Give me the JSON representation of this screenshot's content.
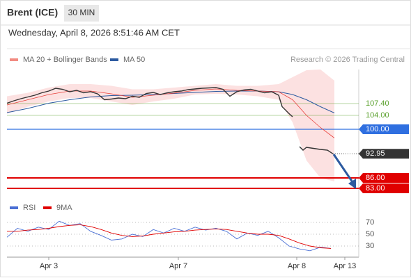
{
  "chart_data": {
    "type": "line",
    "title": "Brent (ICE)",
    "timeframe": "30 MIN",
    "subtitle": "Wednesday, April 8, 2026 8:51:46 AM CET",
    "credit": "Research © 2026 Trading Central",
    "xlim": [
      0,
      505
    ],
    "xticks": [
      {
        "value": 60,
        "label": "Apr 3"
      },
      {
        "value": 246,
        "label": "Apr 7"
      },
      {
        "value": 416,
        "label": "Apr 8"
      },
      {
        "value": 485,
        "label": "Apr 13"
      }
    ],
    "ylim": [
      80.2,
      117.2
    ],
    "price": {
      "color": "#333333",
      "x": [
        0,
        10,
        20,
        30,
        40,
        50,
        60,
        70,
        80,
        90,
        100,
        110,
        120,
        130,
        140,
        150,
        160,
        170,
        180,
        190,
        200,
        210,
        220,
        230,
        240,
        250,
        260,
        270,
        280,
        290,
        300,
        310,
        320,
        330,
        340,
        350,
        360,
        370,
        380,
        390,
        395,
        405,
        410,
        415,
        420,
        425,
        430,
        440,
        450,
        460,
        468
      ],
      "values": [
        107.5,
        108.2,
        108.8,
        109.3,
        109.8,
        110.5,
        111.0,
        111.8,
        111.5,
        110.8,
        111.2,
        110.5,
        110.8,
        110.2,
        108.5,
        108.7,
        109.0,
        108.8,
        109.5,
        109.2,
        110.3,
        110.6,
        110.0,
        110.5,
        110.8,
        111.0,
        111.4,
        111.6,
        111.8,
        111.9,
        112.0,
        111.5,
        109.5,
        110.8,
        111.3,
        111.5,
        111.0,
        110.5,
        110.8,
        109.8,
        106.5,
        104.5,
        103.6,
        null,
        95.0,
        94.0,
        94.8,
        94.5,
        94.2,
        94.0,
        92.95
      ]
    },
    "series": [
      {
        "name": "MA 20 + Bollinger Bands",
        "color": "#e8413c",
        "swatch": "#f28b82",
        "band_color": "#fbd9d9",
        "x": [
          0,
          30,
          60,
          90,
          120,
          150,
          180,
          210,
          240,
          270,
          300,
          330,
          360,
          390,
          410,
          430,
          450,
          470
        ],
        "values": [
          107,
          108.5,
          110,
          111,
          111,
          110.2,
          109.2,
          109.8,
          110.4,
          111.2,
          111.6,
          111.2,
          111,
          110.8,
          108.5,
          104,
          100.5,
          97.5
        ],
        "upper": [
          109.5,
          110.5,
          112,
          113,
          113,
          112.5,
          111.5,
          111.5,
          112,
          112.5,
          113,
          112.5,
          112.5,
          113,
          115,
          117,
          117.2,
          114
        ],
        "lower": [
          104.5,
          106.5,
          108,
          109,
          109,
          108,
          107,
          108,
          108.8,
          110,
          110.2,
          110,
          109.5,
          108.5,
          102,
          91,
          86,
          85
        ]
      },
      {
        "name": "MA 50",
        "color": "#2c5aa0",
        "swatch": "#2c5aa0",
        "x": [
          0,
          30,
          60,
          90,
          120,
          150,
          180,
          210,
          240,
          270,
          300,
          330,
          360,
          390,
          410,
          430,
          450,
          470
        ],
        "values": [
          104.8,
          106,
          107.5,
          108.5,
          109.3,
          109.7,
          109.8,
          110,
          110.3,
          110.6,
          110.9,
          111,
          111,
          110.8,
          110,
          108.5,
          106.5,
          104.7
        ]
      }
    ],
    "levels": [
      {
        "value": 107.4,
        "label": "107.40",
        "color": "#5aa02c",
        "style": "text"
      },
      {
        "value": 104.0,
        "label": "104.00",
        "color": "#5aa02c",
        "style": "text"
      },
      {
        "value": 100.0,
        "label": "100.00",
        "color": "#2f6fe0",
        "style": "box"
      },
      {
        "value": 92.95,
        "label": "92.95",
        "color": "#333333",
        "style": "last"
      },
      {
        "value": 86.0,
        "label": "86.00",
        "color": "#e00000",
        "style": "box"
      },
      {
        "value": 83.0,
        "label": "83.00",
        "color": "#e00000",
        "style": "box"
      }
    ],
    "rsi": {
      "ylim": [
        13.5,
        81.8
      ],
      "yticks": [
        30,
        50,
        70
      ],
      "series": [
        {
          "name": "RSI",
          "color": "#4a6fd4",
          "x": [
            0,
            15,
            30,
            45,
            60,
            75,
            90,
            105,
            120,
            135,
            150,
            165,
            180,
            195,
            210,
            225,
            240,
            255,
            270,
            285,
            300,
            315,
            330,
            345,
            360,
            375,
            390,
            405,
            420,
            435,
            450,
            465
          ],
          "values": [
            45,
            60,
            55,
            62,
            58,
            72,
            65,
            68,
            55,
            48,
            40,
            42,
            50,
            46,
            58,
            52,
            60,
            55,
            62,
            57,
            60,
            55,
            42,
            52,
            48,
            55,
            44,
            30,
            25,
            22,
            28,
            26
          ]
        },
        {
          "name": "9MA",
          "color": "#e00000",
          "x": [
            0,
            15,
            30,
            45,
            60,
            75,
            90,
            105,
            120,
            135,
            150,
            165,
            180,
            195,
            210,
            225,
            240,
            255,
            270,
            285,
            300,
            315,
            330,
            345,
            360,
            375,
            390,
            405,
            420,
            435,
            450,
            465
          ],
          "values": [
            55,
            55,
            57,
            58,
            60,
            63,
            65,
            66,
            63,
            58,
            52,
            48,
            46,
            47,
            50,
            52,
            54,
            55,
            57,
            58,
            59,
            58,
            55,
            52,
            50,
            50,
            48,
            42,
            35,
            30,
            27,
            26
          ]
        }
      ]
    }
  }
}
